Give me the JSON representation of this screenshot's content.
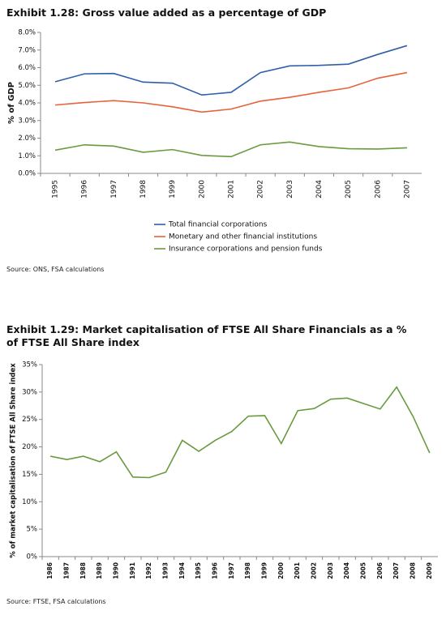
{
  "chart_data": [
    {
      "type": "line",
      "title": "Exhibit 1.28: Gross value added as a percentage of GDP",
      "y_label": "% of GDP",
      "categories": [
        "1995",
        "1996",
        "1997",
        "1998",
        "1999",
        "2000",
        "2001",
        "2002",
        "2003",
        "2004",
        "2005",
        "2006",
        "2007"
      ],
      "series": [
        {
          "name": "Total financial corporations",
          "color": "#2e5fa8",
          "values": [
            5.2,
            5.65,
            5.67,
            5.18,
            5.12,
            4.45,
            4.6,
            5.72,
            6.1,
            6.13,
            6.2,
            6.75,
            7.25
          ]
        },
        {
          "name": "Monetary and other financial institutions",
          "color": "#e8623a",
          "values": [
            3.88,
            4.02,
            4.13,
            4.0,
            3.78,
            3.48,
            3.65,
            4.1,
            4.32,
            4.6,
            4.85,
            5.4,
            5.72
          ]
        },
        {
          "name": "Insurance corporations and pension funds",
          "color": "#6a9a3f",
          "values": [
            1.32,
            1.62,
            1.55,
            1.2,
            1.35,
            1.02,
            0.95,
            1.62,
            1.78,
            1.52,
            1.4,
            1.38,
            1.45
          ]
        }
      ],
      "ylim": [
        0,
        8
      ],
      "yticks": [
        {
          "value": 0,
          "label": "0.0%"
        },
        {
          "value": 1,
          "label": "1.0%"
        },
        {
          "value": 2,
          "label": "2.0%"
        },
        {
          "value": 3,
          "label": "3.0%"
        },
        {
          "value": 4,
          "label": "4.0%"
        },
        {
          "value": 5,
          "label": "5.0%"
        },
        {
          "value": 6,
          "label": "6.0%"
        },
        {
          "value": 7,
          "label": "7.0%"
        },
        {
          "value": 8,
          "label": "8.0%"
        }
      ],
      "legend": "bottom",
      "source": "Source: ONS, FSA calculations"
    },
    {
      "type": "line",
      "title": "Exhibit 1.29: Market capitalisation of FTSE All Share Financials as a % of FTSE All Share index",
      "y_label": "% of market capitalisation of FTSE All Share index",
      "categories": [
        "1986",
        "1987",
        "1988",
        "1989",
        "1990",
        "1991",
        "1992",
        "1993",
        "1994",
        "1995",
        "1996",
        "1997",
        "1998",
        "1999",
        "2000",
        "2001",
        "2002",
        "2003",
        "2004",
        "2005",
        "2006",
        "2007",
        "2008",
        "2009"
      ],
      "values": [
        18.3,
        17.7,
        18.3,
        17.3,
        19.1,
        14.5,
        14.4,
        15.4,
        21.2,
        19.2,
        21.2,
        22.8,
        25.6,
        25.7,
        20.6,
        26.6,
        27.0,
        28.7,
        28.9,
        27.9,
        26.9,
        30.9,
        25.5,
        18.9
      ],
      "color": "#6a9a3f",
      "ylim": [
        0,
        35
      ],
      "yticks": [
        {
          "value": 0,
          "label": "0%"
        },
        {
          "value": 5,
          "label": "5%"
        },
        {
          "value": 10,
          "label": "10%"
        },
        {
          "value": 15,
          "label": "15%"
        },
        {
          "value": 20,
          "label": "20%"
        },
        {
          "value": 25,
          "label": "25%"
        },
        {
          "value": 30,
          "label": "30%"
        },
        {
          "value": 35,
          "label": "35%"
        }
      ],
      "source": "Source: FTSE, FSA calculations"
    }
  ]
}
